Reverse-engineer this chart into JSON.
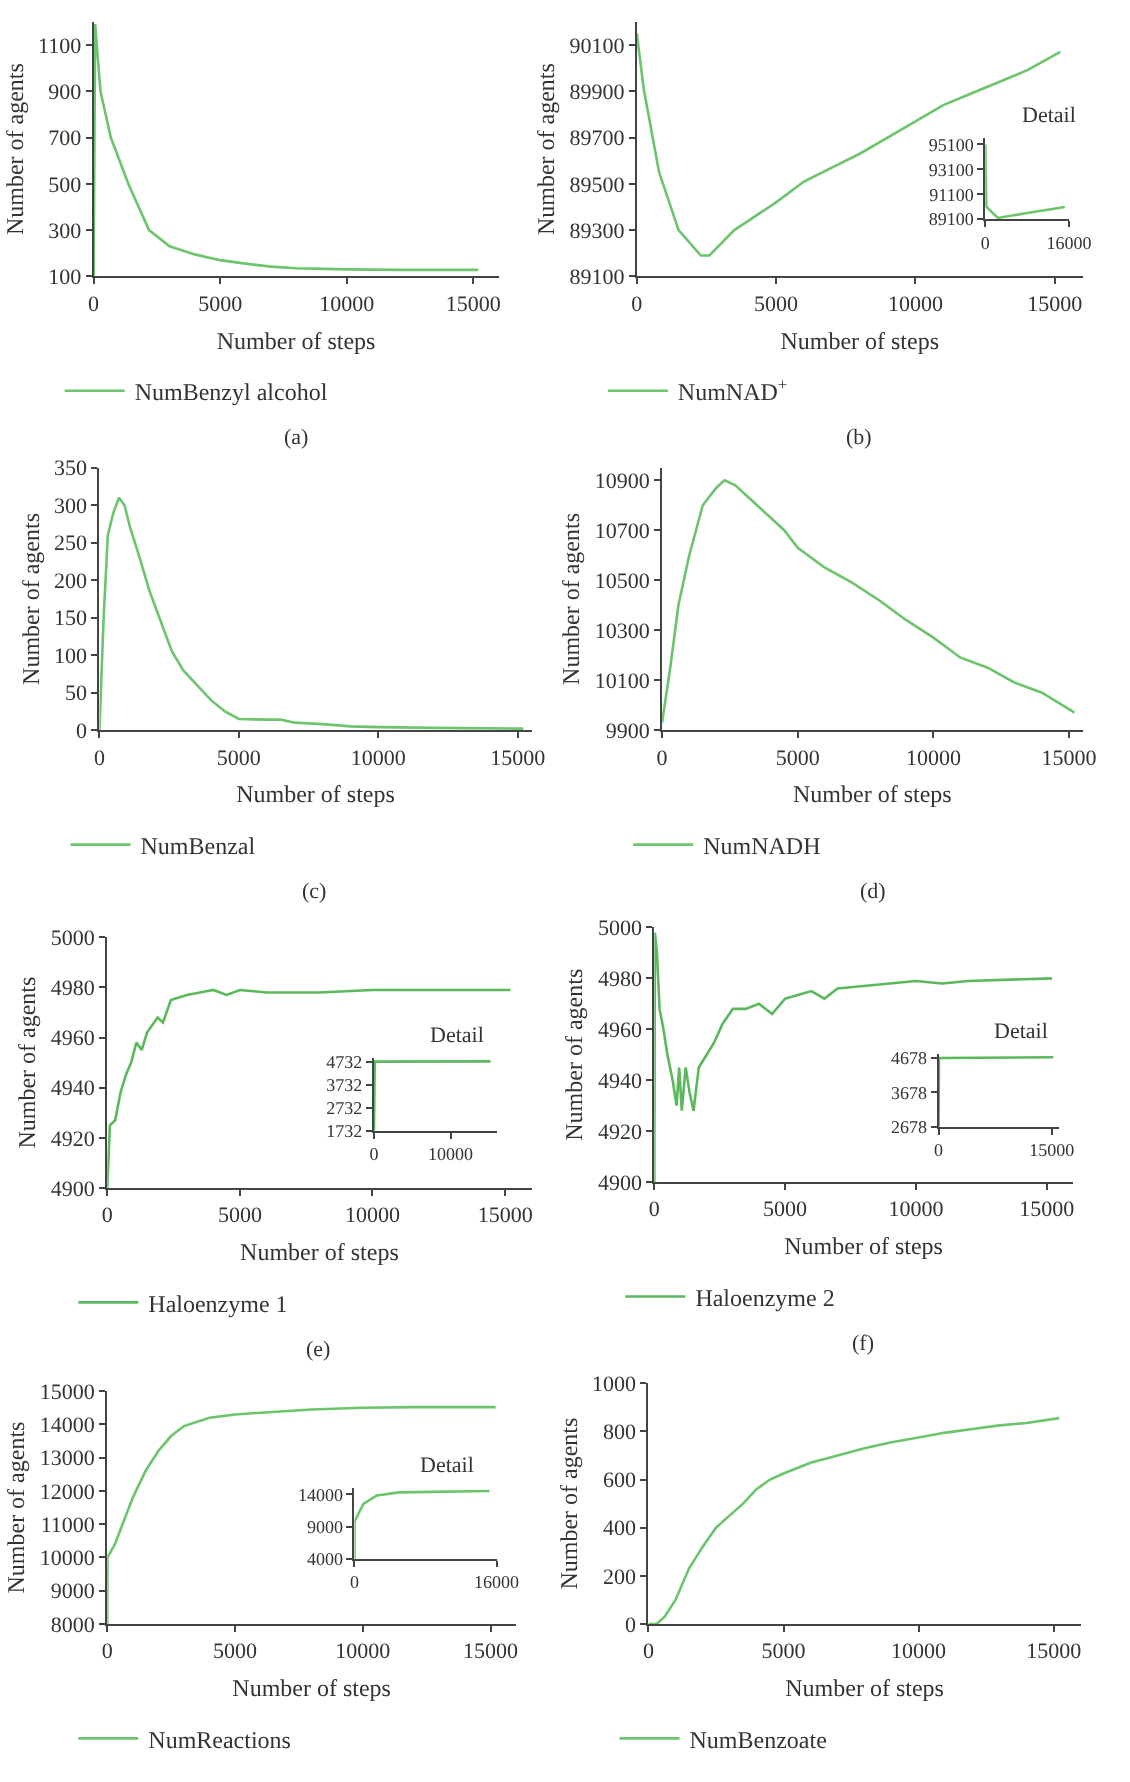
{
  "chart_data": [
    {
      "type": "line",
      "xlabel": "Number of steps",
      "ylabel": "Number of agents",
      "xlim": [
        0,
        16000
      ],
      "ylim": [
        100,
        1200
      ],
      "xticks": [
        0,
        5000,
        10000,
        15000
      ],
      "yticks": [
        100,
        300,
        500,
        700,
        900,
        1100
      ],
      "legend": "bottom",
      "annotations": [
        "(a)"
      ],
      "series": [
        {
          "name": "NumBenzyl alcohol",
          "color": "#6cc46c",
          "x": [
            0,
            60,
            270,
            680,
            1370,
            2190,
            3000,
            4000,
            5000,
            6000,
            7000,
            8000,
            10000,
            12000,
            15200
          ],
          "values": [
            100,
            1190,
            900,
            700,
            500,
            300,
            230,
            195,
            170,
            155,
            142,
            135,
            130,
            128,
            128
          ]
        }
      ]
    },
    {
      "type": "line",
      "xlabel": "Number of steps",
      "ylabel": "Number of agents",
      "xlim": [
        0,
        16000
      ],
      "ylim": [
        89100,
        90200
      ],
      "xticks": [
        0,
        5000,
        10000,
        15000
      ],
      "yticks": [
        89100,
        89300,
        89500,
        89700,
        89900,
        90100
      ],
      "legend": "bottom",
      "annotations": [
        "(b)"
      ],
      "series": [
        {
          "name": "NumNAD$^{+}$",
          "color": "#6cc46c",
          "x": [
            0,
            250,
            800,
            1500,
            2300,
            2600,
            3500,
            5000,
            6000,
            7000,
            8000,
            9000,
            10000,
            11000,
            12000,
            13000,
            14000,
            15200
          ],
          "values": [
            90150,
            89910,
            89550,
            89300,
            89190,
            89190,
            89300,
            89420,
            89510,
            89570,
            89630,
            89700,
            89770,
            89840,
            89890,
            89940,
            89990,
            90070
          ]
        }
      ]
    },
    {
      "type": "line",
      "title": "Detail",
      "xlim": [
        0,
        16000
      ],
      "ylim": [
        89100,
        95600
      ],
      "xticks": [
        0,
        16000
      ],
      "yticks": [
        89100,
        91100,
        93100,
        95100
      ],
      "series": [
        {
          "color": "#6cc46c",
          "x": [
            0,
            200,
            2400,
            8000,
            15200
          ],
          "values": [
            95100,
            90100,
            89200,
            89600,
            90070
          ]
        }
      ]
    },
    {
      "type": "line",
      "xlabel": "Number of steps",
      "ylabel": "Number of agents",
      "xlim": [
        0,
        15500
      ],
      "ylim": [
        0,
        350
      ],
      "xticks": [
        0,
        5000,
        10000,
        15000
      ],
      "yticks": [
        0,
        50,
        100,
        150,
        200,
        250,
        300,
        350
      ],
      "legend": "bottom",
      "annotations": [
        "(c)"
      ],
      "series": [
        {
          "name": "NumBenzal",
          "color": "#6cc46c",
          "x": [
            0,
            150,
            300,
            500,
            700,
            900,
            1100,
            1400,
            1800,
            2200,
            2600,
            3000,
            3500,
            4000,
            4500,
            5000,
            6000,
            6500,
            7000,
            8000,
            9000,
            10000,
            12000,
            15200
          ],
          "values": [
            0,
            150,
            260,
            290,
            310,
            300,
            270,
            235,
            185,
            145,
            105,
            80,
            60,
            40,
            25,
            15,
            14,
            14,
            10,
            8,
            5,
            4,
            3,
            2
          ]
        }
      ]
    },
    {
      "type": "line",
      "xlabel": "Number of steps",
      "ylabel": "Number of agents",
      "xlim": [
        0,
        15500
      ],
      "ylim": [
        9900,
        10950
      ],
      "xticks": [
        0,
        5000,
        10000,
        15000
      ],
      "yticks": [
        9900,
        10100,
        10300,
        10500,
        10700,
        10900
      ],
      "legend": "bottom",
      "annotations": [
        "(d)"
      ],
      "series": [
        {
          "name": "NumNADH",
          "color": "#6cc46c",
          "x": [
            0,
            300,
            600,
            1000,
            1500,
            2000,
            2300,
            2700,
            3500,
            4500,
            5000,
            6000,
            7000,
            8000,
            9000,
            10000,
            11000,
            12000,
            13000,
            14000,
            15200
          ],
          "values": [
            9930,
            10150,
            10400,
            10600,
            10800,
            10870,
            10900,
            10880,
            10800,
            10700,
            10630,
            10550,
            10490,
            10420,
            10340,
            10270,
            10190,
            10150,
            10090,
            10050,
            9970
          ]
        }
      ]
    },
    {
      "type": "line",
      "xlabel": "Number of steps",
      "ylabel": "Number of agents",
      "xlim": [
        0,
        16000
      ],
      "ylim": [
        4900,
        5000
      ],
      "xticks": [
        0,
        5000,
        10000,
        15000
      ],
      "yticks": [
        4900,
        4920,
        4940,
        4960,
        4980,
        5000
      ],
      "legend": "bottom",
      "annotations": [
        "(e)"
      ],
      "series": [
        {
          "name": "Haloenzyme 1",
          "color": "#5cb85c",
          "x": [
            0,
            100,
            300,
            500,
            700,
            900,
            1100,
            1300,
            1500,
            1700,
            1900,
            2100,
            2400,
            2700,
            3000,
            3500,
            4000,
            4500,
            5000,
            6000,
            7000,
            8000,
            10000,
            12000,
            15200
          ],
          "values": [
            4900,
            4925,
            4927,
            4938,
            4945,
            4950,
            4958,
            4955,
            4962,
            4965,
            4968,
            4966,
            4975,
            4976,
            4977,
            4978,
            4979,
            4977,
            4979,
            4978,
            4978,
            4978,
            4979,
            4979,
            4979
          ]
        }
      ]
    },
    {
      "type": "line",
      "title": "Detail",
      "xlim": [
        0,
        16000
      ],
      "ylim": [
        1732,
        4900
      ],
      "xticks": [
        0,
        10000
      ],
      "yticks": [
        1732,
        2732,
        3732,
        4732
      ],
      "series": [
        {
          "color": "#5cb85c",
          "x": [
            0,
            100,
            15200
          ],
          "values": [
            1732,
            4732,
            4740
          ]
        }
      ]
    },
    {
      "type": "line",
      "xlabel": "Number of steps",
      "ylabel": "Number of agents",
      "xlim": [
        0,
        16000
      ],
      "ylim": [
        4900,
        5000
      ],
      "xticks": [
        0,
        5000,
        10000,
        15000
      ],
      "yticks": [
        4900,
        4920,
        4940,
        4960,
        4980,
        5000
      ],
      "legend": "bottom",
      "annotations": [
        "(f)"
      ],
      "series": [
        {
          "name": "Haloenzyme 2",
          "color": "#5cb85c",
          "x": [
            0,
            20,
            100,
            200,
            350,
            500,
            700,
            850,
            950,
            1050,
            1200,
            1350,
            1500,
            1700,
            2000,
            2300,
            2600,
            3000,
            3500,
            4000,
            4500,
            5000,
            6000,
            6500,
            7000,
            8000,
            9000,
            10000,
            11000,
            12000,
            15200
          ],
          "values": [
            4900,
            4998,
            4990,
            4968,
            4960,
            4950,
            4940,
            4930,
            4945,
            4928,
            4945,
            4935,
            4928,
            4945,
            4950,
            4955,
            4962,
            4968,
            4968,
            4970,
            4966,
            4972,
            4975,
            4972,
            4976,
            4977,
            4978,
            4979,
            4978,
            4979,
            4980
          ]
        }
      ]
    },
    {
      "type": "line",
      "title": "Detail",
      "xlim": [
        0,
        16000
      ],
      "ylim": [
        2678,
        4800
      ],
      "xticks": [
        0,
        15000
      ],
      "yticks": [
        2678,
        3678,
        4678
      ],
      "series": [
        {
          "color": "#5cb85c",
          "x": [
            0,
            50,
            15200
          ],
          "values": [
            2678,
            4678,
            4700
          ]
        }
      ]
    },
    {
      "type": "line",
      "xlabel": "Number of steps",
      "ylabel": "Number of agents",
      "xlim": [
        0,
        16000
      ],
      "ylim": [
        8000,
        15000
      ],
      "xticks": [
        0,
        5000,
        10000,
        15000
      ],
      "yticks": [
        8000,
        9000,
        10000,
        11000,
        12000,
        13000,
        14000,
        15000
      ],
      "legend": "bottom",
      "series": [
        {
          "name": "NumReactions",
          "color": "#6cc46c",
          "x": [
            0,
            10,
            300,
            600,
            1000,
            1500,
            2000,
            2500,
            3000,
            4000,
            5000,
            6000,
            8000,
            10000,
            12000,
            15200
          ],
          "values": [
            8000,
            10000,
            10400,
            11000,
            11800,
            12600,
            13200,
            13650,
            13950,
            14200,
            14300,
            14350,
            14450,
            14500,
            14520,
            14520
          ]
        }
      ]
    },
    {
      "type": "line",
      "title": "Detail",
      "xlim": [
        0,
        16000
      ],
      "ylim": [
        4000,
        15000
      ],
      "xticks": [
        0,
        16000
      ],
      "yticks": [
        4000,
        9000,
        14000
      ],
      "series": [
        {
          "color": "#6cc46c",
          "x": [
            0,
            10,
            1000,
            2500,
            5000,
            15200
          ],
          "values": [
            4000,
            9800,
            12500,
            13800,
            14300,
            14520
          ]
        }
      ]
    },
    {
      "type": "line",
      "xlabel": "Number of steps",
      "ylabel": "Number of agents",
      "xlim": [
        0,
        16000
      ],
      "ylim": [
        0,
        1000
      ],
      "xticks": [
        0,
        5000,
        10000,
        15000
      ],
      "yticks": [
        0,
        200,
        400,
        600,
        800,
        1000
      ],
      "legend": "bottom",
      "series": [
        {
          "name": "NumBenzoate",
          "color": "#6cc46c",
          "x": [
            0,
            300,
            600,
            1000,
            1500,
            2000,
            2500,
            3000,
            3500,
            4000,
            4500,
            5000,
            6000,
            7000,
            8000,
            9000,
            10000,
            11000,
            12000,
            13000,
            14000,
            15200
          ],
          "values": [
            0,
            0,
            30,
            100,
            230,
            320,
            400,
            450,
            500,
            560,
            600,
            625,
            670,
            700,
            730,
            755,
            775,
            795,
            810,
            825,
            835,
            855
          ]
        }
      ]
    }
  ]
}
